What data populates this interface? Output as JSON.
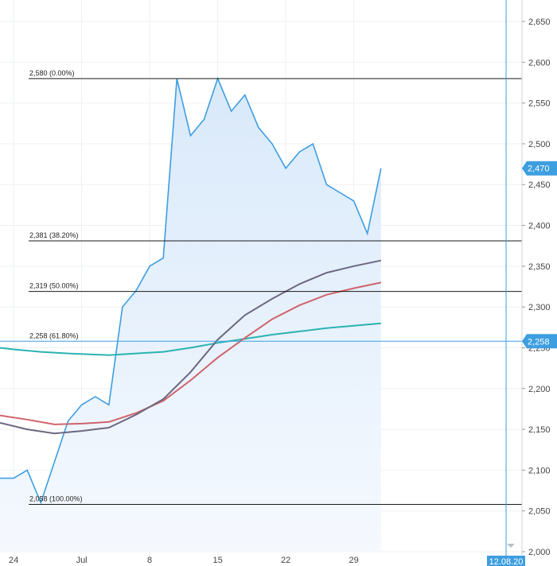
{
  "colors": {
    "price_line": "#3d9ee0",
    "price_fill": "#e6f1fc",
    "grid": "#edf0f3",
    "fib_line": "#1a1a1a",
    "cursor_line": "#3d9ee0",
    "badge": "#3d9ee0"
  },
  "chart_data": {
    "type": "area",
    "y_axis": {
      "position": "right",
      "ylim": [
        2000,
        2660
      ],
      "ticks": [
        {
          "value": 2000,
          "label": "2,000"
        },
        {
          "value": 2050,
          "label": "2,050"
        },
        {
          "value": 2100,
          "label": "2,100"
        },
        {
          "value": 2150,
          "label": "2,150"
        },
        {
          "value": 2200,
          "label": "2,200"
        },
        {
          "value": 2250,
          "label": "2,250"
        },
        {
          "value": 2300,
          "label": "2,300"
        },
        {
          "value": 2350,
          "label": "2,350"
        },
        {
          "value": 2400,
          "label": "2,400"
        },
        {
          "value": 2450,
          "label": "2,450"
        },
        {
          "value": 2500,
          "label": "2,500"
        },
        {
          "value": 2550,
          "label": "2,550"
        },
        {
          "value": 2600,
          "label": "2,600"
        },
        {
          "value": 2650,
          "label": "2,650"
        }
      ]
    },
    "x_axis": {
      "ticks": [
        {
          "index": 1,
          "label": "24"
        },
        {
          "index": 6,
          "label": "Jul"
        },
        {
          "index": 11,
          "label": "8"
        },
        {
          "index": 16,
          "label": "15"
        },
        {
          "index": 21,
          "label": "22"
        },
        {
          "index": 26,
          "label": "29"
        }
      ],
      "xlim": [
        0,
        37
      ],
      "cursor_label": "12.08.20",
      "cursor_index": 36
    },
    "price_series": {
      "values": [
        2090,
        2090,
        2100,
        2060,
        2110,
        2160,
        2180,
        2190,
        2180,
        2300,
        2320,
        2350,
        2360,
        2580,
        2510,
        2530,
        2580,
        2540,
        2560,
        2520,
        2500,
        2470,
        2490,
        2500,
        2450,
        2440,
        2430,
        2390,
        2470
      ],
      "x_start": 0,
      "x_step": 1
    },
    "ma_series": [
      {
        "color": "#2bb3b0",
        "values": [
          [
            0,
            2250
          ],
          [
            1,
            2248
          ],
          [
            3,
            2245
          ],
          [
            5,
            2243
          ],
          [
            8,
            2241
          ],
          [
            10,
            2243
          ],
          [
            12,
            2245
          ],
          [
            14,
            2250
          ],
          [
            16,
            2256
          ],
          [
            18,
            2261
          ],
          [
            20,
            2266
          ],
          [
            22,
            2270
          ],
          [
            24,
            2274
          ],
          [
            26,
            2277
          ],
          [
            28,
            2280
          ]
        ]
      },
      {
        "color": "#d0636b",
        "values": [
          [
            0,
            2167
          ],
          [
            2,
            2162
          ],
          [
            4,
            2156
          ],
          [
            6,
            2157
          ],
          [
            8,
            2159
          ],
          [
            10,
            2170
          ],
          [
            12,
            2185
          ],
          [
            14,
            2210
          ],
          [
            16,
            2238
          ],
          [
            18,
            2262
          ],
          [
            20,
            2285
          ],
          [
            22,
            2302
          ],
          [
            24,
            2315
          ],
          [
            26,
            2323
          ],
          [
            28,
            2330
          ]
        ]
      },
      {
        "color": "#6b6880",
        "values": [
          [
            0,
            2158
          ],
          [
            2,
            2150
          ],
          [
            4,
            2145
          ],
          [
            6,
            2148
          ],
          [
            8,
            2152
          ],
          [
            10,
            2168
          ],
          [
            12,
            2187
          ],
          [
            14,
            2220
          ],
          [
            16,
            2260
          ],
          [
            18,
            2290
          ],
          [
            20,
            2310
          ],
          [
            22,
            2328
          ],
          [
            24,
            2342
          ],
          [
            26,
            2350
          ],
          [
            28,
            2357
          ]
        ]
      }
    ],
    "fib_levels": [
      {
        "value": 2580,
        "label": "2,580 (0.00%)"
      },
      {
        "value": 2381,
        "label": "2,381 (38.20%)"
      },
      {
        "value": 2319,
        "label": "2,319 (50.00%)"
      },
      {
        "value": 2258,
        "label": "2,258 (61.80%)"
      },
      {
        "value": 2058,
        "label": "2,058 (100.00%)"
      }
    ],
    "badges": [
      {
        "value": 2470,
        "label": "2,470"
      },
      {
        "value": 2258,
        "label": "2,258"
      }
    ]
  }
}
